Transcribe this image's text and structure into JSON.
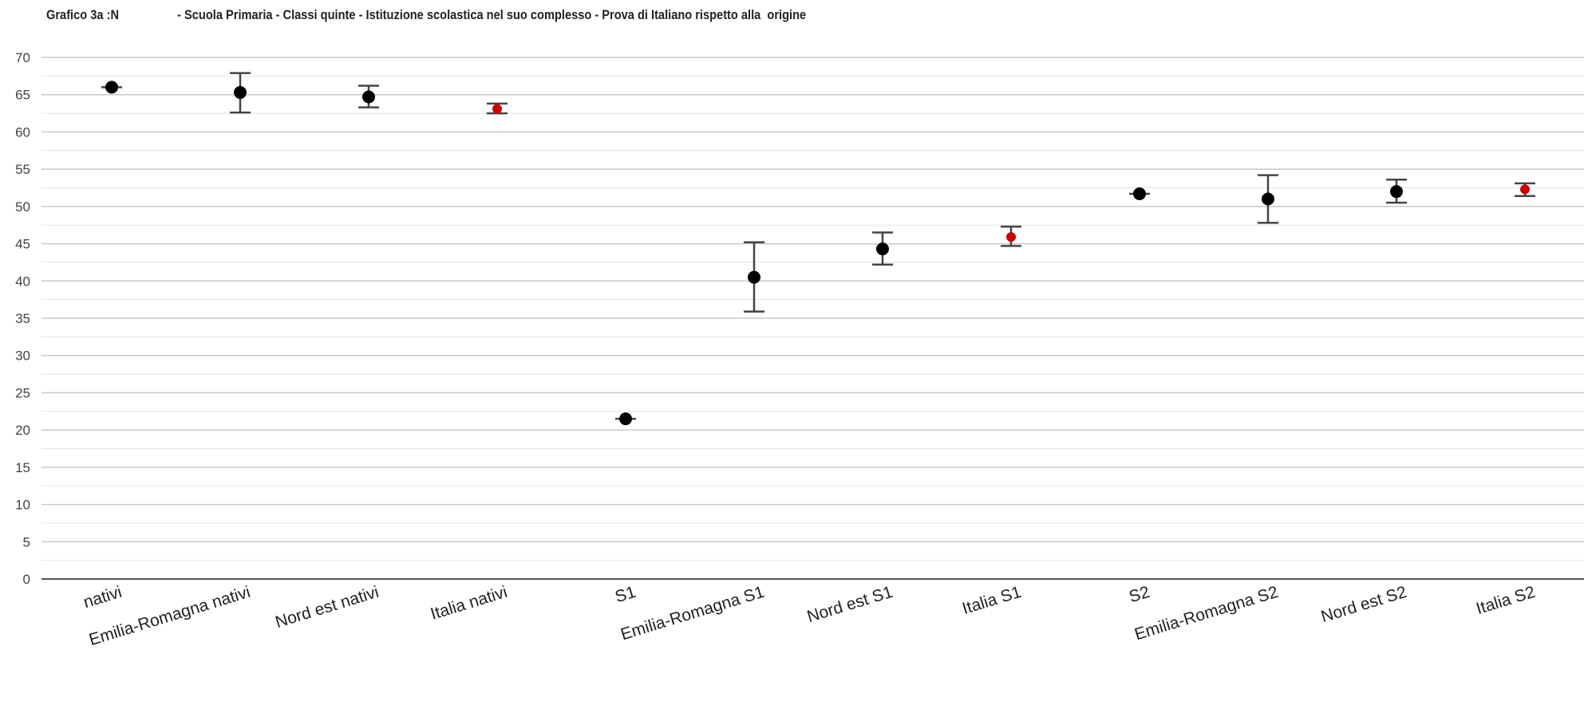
{
  "chart_data": {
    "type": "scatter",
    "title": "Grafico 3a :N                  - Scuola Primaria - Classi quinte - Istituzione scolastica nel suo complesso - Prova di Italiano rispetto alla  origine",
    "xlabel": "",
    "ylabel": "",
    "ylim": [
      0,
      70
    ],
    "ytick_step": 5,
    "grid": true,
    "categories": [
      "  nativi",
      "Emilia-Romagna nativi",
      "Nord est nativi",
      "Italia nativi",
      "  S1",
      "Emilia-Romagna S1",
      "Nord est S1",
      "Italia S1",
      "  S2",
      "Emilia-Romagna S2",
      "Nord est S2",
      "Italia S2"
    ],
    "values": [
      66.0,
      65.3,
      64.7,
      63.1,
      21.5,
      40.5,
      44.3,
      45.9,
      51.7,
      51.0,
      52.0,
      52.3
    ],
    "err_low": [
      66.0,
      62.6,
      63.3,
      62.5,
      21.5,
      35.9,
      42.2,
      44.7,
      51.7,
      47.8,
      50.5,
      51.4
    ],
    "err_high": [
      66.0,
      67.9,
      66.2,
      63.8,
      21.5,
      45.2,
      46.5,
      47.3,
      51.7,
      54.2,
      53.6,
      53.1
    ],
    "point_colors": [
      "#000000",
      "#000000",
      "#000000",
      "#cc0000",
      "#000000",
      "#000000",
      "#000000",
      "#cc0000",
      "#000000",
      "#000000",
      "#000000",
      "#cc0000"
    ]
  }
}
